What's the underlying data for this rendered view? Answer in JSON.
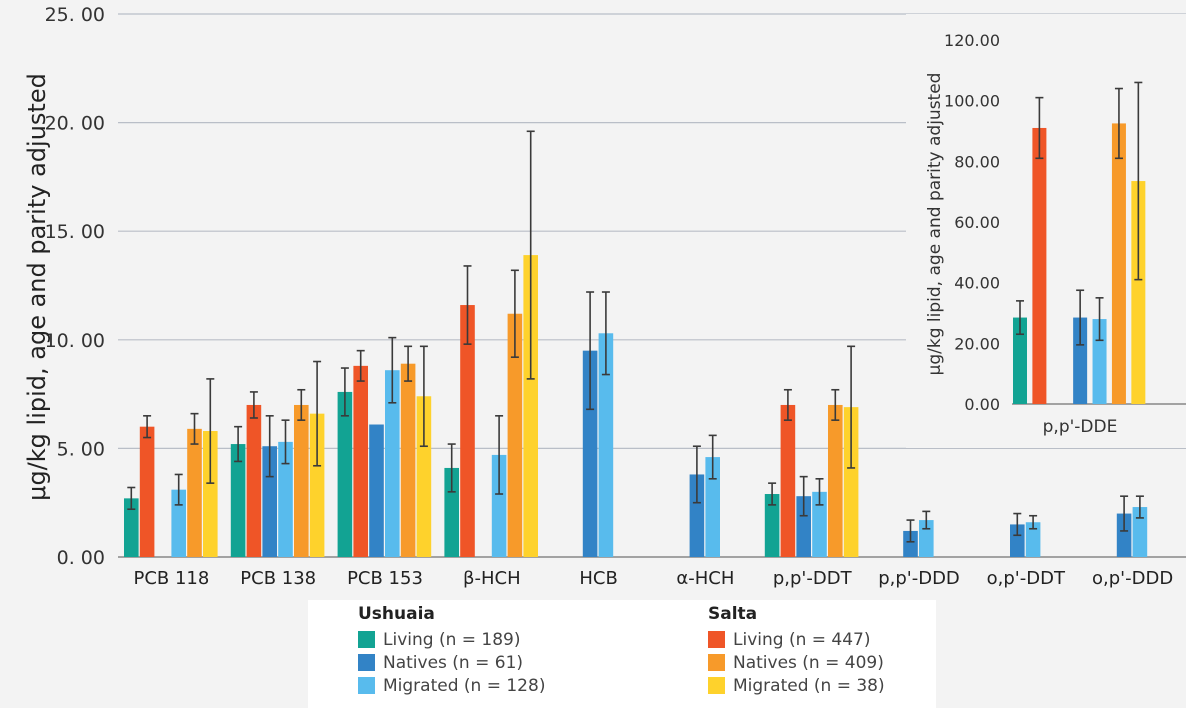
{
  "chart_data": [
    {
      "type": "bar",
      "ylabel": "μg/kg lipid, age and parity adjusted",
      "ylim": [
        0,
        25
      ],
      "yticks": [
        "0. 00",
        "5. 00",
        "10. 00",
        "15. 00",
        "20. 00",
        "25. 00"
      ],
      "grid": true,
      "categories": [
        "PCB 118",
        "PCB 138",
        "PCB 153",
        "β-HCH",
        "HCB",
        "α-HCH",
        "p,p'-DDT",
        "p,p'-DDD",
        "o,p'-DDT",
        "o,p'-DDD"
      ],
      "series": [
        {
          "name": "Living (n = 189)",
          "color": "#12a393",
          "values": [
            2.7,
            5.2,
            7.6,
            4.1,
            null,
            null,
            2.9,
            null,
            null,
            null
          ],
          "errors": [
            0.5,
            0.8,
            1.1,
            1.1,
            null,
            null,
            0.5,
            null,
            null,
            null
          ]
        },
        {
          "name": "Living (n = 447)",
          "color": "#ef5527",
          "values": [
            6.0,
            7.0,
            8.8,
            11.6,
            null,
            null,
            7.0,
            null,
            null,
            null
          ],
          "errors": [
            0.5,
            0.6,
            0.7,
            1.8,
            null,
            null,
            0.7,
            null,
            null,
            null
          ]
        },
        {
          "name": "Natives (n = 61)",
          "color": "#3283c6",
          "values": [
            null,
            5.1,
            6.1,
            null,
            9.5,
            3.8,
            2.8,
            1.2,
            1.5,
            2.0
          ],
          "errors": [
            null,
            1.4,
            null,
            null,
            2.7,
            1.3,
            0.9,
            0.5,
            0.5,
            0.8
          ]
        },
        {
          "name": "Migrated (n = 128)",
          "color": "#58bbed",
          "values": [
            3.1,
            5.3,
            8.6,
            4.7,
            10.3,
            4.6,
            3.0,
            1.7,
            1.6,
            2.3
          ],
          "errors": [
            0.7,
            1.0,
            1.5,
            1.8,
            1.9,
            1.0,
            0.6,
            0.4,
            0.3,
            0.5
          ]
        },
        {
          "name": "Natives (n = 409)",
          "color": "#f79a2a",
          "values": [
            5.9,
            7.0,
            8.9,
            11.2,
            null,
            null,
            7.0,
            null,
            null,
            null
          ],
          "errors": [
            0.7,
            0.7,
            0.8,
            2.0,
            null,
            null,
            0.7,
            null,
            null,
            null
          ]
        },
        {
          "name": "Migrated (n = 38)",
          "color": "#fed22c",
          "values": [
            5.8,
            6.6,
            7.4,
            13.9,
            null,
            null,
            6.9,
            null,
            null,
            null
          ],
          "errors": [
            2.4,
            2.4,
            2.3,
            5.7,
            null,
            null,
            2.8,
            null,
            null,
            null
          ]
        }
      ]
    },
    {
      "type": "bar",
      "ylabel": "μg/kg lipid, age and parity adjusted",
      "ylim": [
        0,
        120
      ],
      "yticks": [
        "0.00",
        "20.00",
        "40.00",
        "60.00",
        "80.00",
        "100.00",
        "120.00"
      ],
      "grid": false,
      "categories": [
        "p,p'-DDE"
      ],
      "series": [
        {
          "name": "Living (n = 189)",
          "color": "#12a393",
          "values": [
            28.5
          ],
          "errors": [
            5.5
          ]
        },
        {
          "name": "Living (n = 447)",
          "color": "#ef5527",
          "values": [
            91.0
          ],
          "errors": [
            10.0
          ]
        },
        {
          "name": "Natives (n = 61)",
          "color": "#3283c6",
          "values": [
            28.5
          ],
          "errors": [
            9.0
          ]
        },
        {
          "name": "Migrated (n = 128)",
          "color": "#58bbed",
          "values": [
            28.0
          ],
          "errors": [
            7.0
          ]
        },
        {
          "name": "Natives (n = 409)",
          "color": "#f79a2a",
          "values": [
            92.5
          ],
          "errors": [
            11.5
          ]
        },
        {
          "name": "Migrated (n = 38)",
          "color": "#fed22c",
          "values": [
            73.5
          ],
          "errors": [
            32.5
          ]
        }
      ]
    }
  ],
  "legend": {
    "groups": [
      {
        "title": "Ushuaia",
        "items": [
          {
            "label": "Living (n = 189)",
            "color": "#12a393"
          },
          {
            "label": "Natives (n = 61)",
            "color": "#3283c6"
          },
          {
            "label": "Migrated (n = 128)",
            "color": "#58bbed"
          }
        ]
      },
      {
        "title": "Salta",
        "items": [
          {
            "label": "Living (n = 447)",
            "color": "#ef5527"
          },
          {
            "label": "Natives (n = 409)",
            "color": "#f79a2a"
          },
          {
            "label": "Migrated (n = 38)",
            "color": "#fed22c"
          }
        ]
      }
    ]
  }
}
